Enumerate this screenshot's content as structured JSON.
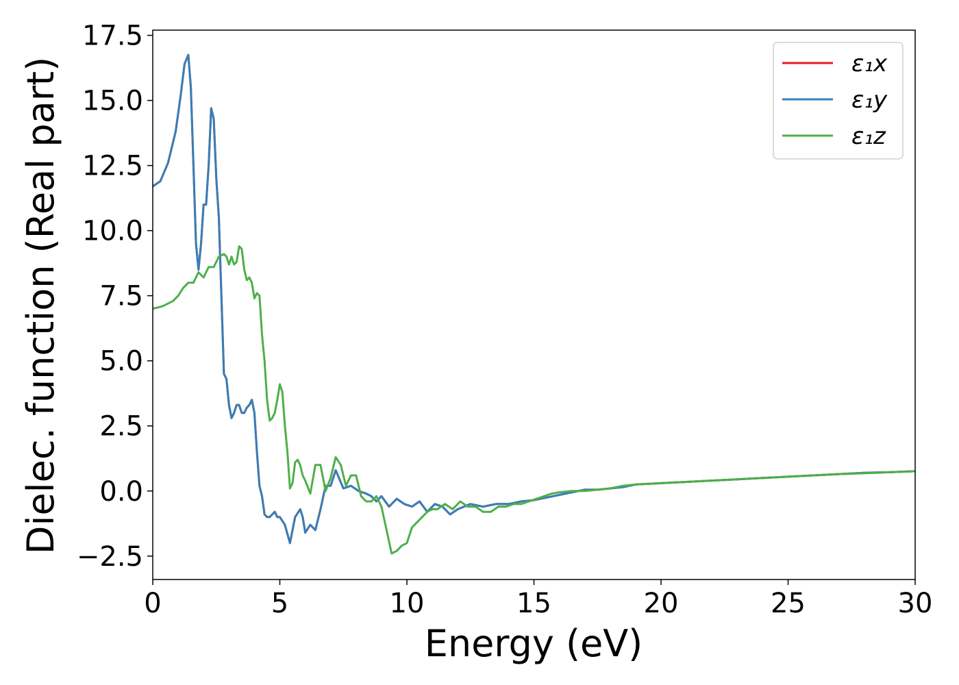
{
  "chart_data": {
    "type": "line",
    "title": "",
    "xlabel": "Energy (eV)",
    "ylabel": "Dielec. function (Real part)",
    "xlim": [
      0,
      30
    ],
    "ylim": [
      -3.4,
      17.7
    ],
    "xticks": [
      0,
      5,
      10,
      15,
      20,
      25,
      30
    ],
    "xtick_labels": [
      "0",
      "5",
      "10",
      "15",
      "20",
      "25",
      "30"
    ],
    "yticks": [
      -2.5,
      0.0,
      2.5,
      5.0,
      7.5,
      10.0,
      12.5,
      15.0,
      17.5
    ],
    "ytick_labels": [
      "−2.5",
      "0.0",
      "2.5",
      "5.0",
      "7.5",
      "10.0",
      "12.5",
      "15.0",
      "17.5"
    ],
    "grid": false,
    "legend_position": "top-right",
    "series": [
      {
        "name": "ε₁x",
        "color": "#e41a1c",
        "x": [
          0,
          0.3,
          0.6,
          0.9,
          1.1,
          1.25,
          1.4,
          1.5,
          1.6,
          1.7,
          1.8,
          1.9,
          2.0,
          2.1,
          2.2,
          2.3,
          2.4,
          2.5,
          2.6,
          2.7,
          2.8,
          2.9,
          3.0,
          3.1,
          3.2,
          3.3,
          3.4,
          3.5,
          3.6,
          3.7,
          3.8,
          3.9,
          4.0,
          4.1,
          4.2,
          4.3,
          4.4,
          4.5,
          4.6,
          4.7,
          4.8,
          4.9,
          5.0,
          5.2,
          5.4,
          5.6,
          5.8,
          5.9,
          6.0,
          6.2,
          6.4,
          6.6,
          6.8,
          7.0,
          7.2,
          7.5,
          7.8,
          8.1,
          8.4,
          8.6,
          8.8,
          9.0,
          9.3,
          9.6,
          9.9,
          10.2,
          10.5,
          10.8,
          11.1,
          11.4,
          11.7,
          12.0,
          12.5,
          13.0,
          13.5,
          14.0,
          14.5,
          15.0,
          15.5,
          16.0,
          16.5,
          17.0,
          17.5,
          18.0,
          18.5,
          19.0,
          20.0,
          21.0,
          22.0,
          23.0,
          24.0,
          25.0,
          26.0,
          27.0,
          28.0,
          29.0,
          30.0
        ],
        "y": [
          11.7,
          11.9,
          12.6,
          13.8,
          15.2,
          16.4,
          16.75,
          15.5,
          12.5,
          9.5,
          8.5,
          9.5,
          11.0,
          11.0,
          12.5,
          14.7,
          14.3,
          12.0,
          10.5,
          7.5,
          4.5,
          4.3,
          3.3,
          2.8,
          3.0,
          3.3,
          3.3,
          3.0,
          3.0,
          3.2,
          3.3,
          3.5,
          3.0,
          1.5,
          0.2,
          -0.2,
          -0.9,
          -1.0,
          -1.0,
          -0.9,
          -0.8,
          -1.0,
          -1.0,
          -1.3,
          -2.0,
          -1.0,
          -0.7,
          -1.0,
          -1.6,
          -1.3,
          -1.5,
          -0.7,
          0.2,
          0.2,
          0.8,
          0.1,
          0.2,
          0.0,
          -0.1,
          -0.2,
          -0.4,
          -0.2,
          -0.6,
          -0.3,
          -0.5,
          -0.6,
          -0.4,
          -0.8,
          -0.5,
          -0.6,
          -0.9,
          -0.7,
          -0.5,
          -0.6,
          -0.5,
          -0.5,
          -0.4,
          -0.35,
          -0.25,
          -0.15,
          -0.05,
          0.05,
          0.05,
          0.1,
          0.15,
          0.25,
          0.3,
          0.35,
          0.4,
          0.45,
          0.5,
          0.55,
          0.6,
          0.65,
          0.7,
          0.72,
          0.76
        ]
      },
      {
        "name": "ε₁y",
        "color": "#377eb8",
        "x": [
          0,
          0.3,
          0.6,
          0.9,
          1.1,
          1.25,
          1.4,
          1.5,
          1.6,
          1.7,
          1.8,
          1.9,
          2.0,
          2.1,
          2.2,
          2.3,
          2.4,
          2.5,
          2.6,
          2.7,
          2.8,
          2.9,
          3.0,
          3.1,
          3.2,
          3.3,
          3.4,
          3.5,
          3.6,
          3.7,
          3.8,
          3.9,
          4.0,
          4.1,
          4.2,
          4.3,
          4.4,
          4.5,
          4.6,
          4.7,
          4.8,
          4.9,
          5.0,
          5.2,
          5.4,
          5.6,
          5.8,
          5.9,
          6.0,
          6.2,
          6.4,
          6.6,
          6.8,
          7.0,
          7.2,
          7.5,
          7.8,
          8.1,
          8.4,
          8.6,
          8.8,
          9.0,
          9.3,
          9.6,
          9.9,
          10.2,
          10.5,
          10.8,
          11.1,
          11.4,
          11.7,
          12.0,
          12.5,
          13.0,
          13.5,
          14.0,
          14.5,
          15.0,
          15.5,
          16.0,
          16.5,
          17.0,
          17.5,
          18.0,
          18.5,
          19.0,
          20.0,
          21.0,
          22.0,
          23.0,
          24.0,
          25.0,
          26.0,
          27.0,
          28.0,
          29.0,
          30.0
        ],
        "y": [
          11.7,
          11.9,
          12.6,
          13.8,
          15.2,
          16.4,
          16.75,
          15.5,
          12.5,
          9.5,
          8.5,
          9.5,
          11.0,
          11.0,
          12.5,
          14.7,
          14.3,
          12.0,
          10.5,
          7.5,
          4.5,
          4.3,
          3.3,
          2.8,
          3.0,
          3.3,
          3.3,
          3.0,
          3.0,
          3.2,
          3.3,
          3.5,
          3.0,
          1.5,
          0.2,
          -0.2,
          -0.9,
          -1.0,
          -1.0,
          -0.9,
          -0.8,
          -1.0,
          -1.0,
          -1.3,
          -2.0,
          -1.0,
          -0.7,
          -1.0,
          -1.6,
          -1.3,
          -1.5,
          -0.7,
          0.2,
          0.2,
          0.8,
          0.1,
          0.2,
          0.0,
          -0.1,
          -0.2,
          -0.4,
          -0.2,
          -0.6,
          -0.3,
          -0.5,
          -0.6,
          -0.4,
          -0.8,
          -0.5,
          -0.6,
          -0.9,
          -0.7,
          -0.5,
          -0.6,
          -0.5,
          -0.5,
          -0.4,
          -0.35,
          -0.25,
          -0.15,
          -0.05,
          0.05,
          0.05,
          0.1,
          0.15,
          0.25,
          0.3,
          0.35,
          0.4,
          0.45,
          0.5,
          0.55,
          0.6,
          0.65,
          0.7,
          0.72,
          0.76
        ]
      },
      {
        "name": "ε₁z",
        "color": "#4daf4a",
        "x": [
          0,
          0.4,
          0.8,
          1.0,
          1.2,
          1.4,
          1.6,
          1.8,
          2.0,
          2.2,
          2.4,
          2.6,
          2.8,
          2.9,
          3.0,
          3.1,
          3.2,
          3.3,
          3.4,
          3.5,
          3.6,
          3.7,
          3.8,
          3.9,
          4.0,
          4.1,
          4.2,
          4.3,
          4.4,
          4.5,
          4.6,
          4.7,
          4.8,
          4.9,
          5.0,
          5.1,
          5.2,
          5.3,
          5.4,
          5.5,
          5.6,
          5.7,
          5.8,
          5.9,
          6.0,
          6.2,
          6.4,
          6.6,
          6.8,
          7.0,
          7.2,
          7.4,
          7.6,
          7.8,
          8.0,
          8.2,
          8.4,
          8.6,
          8.8,
          9.0,
          9.2,
          9.4,
          9.6,
          9.8,
          10.0,
          10.2,
          10.4,
          10.6,
          10.8,
          11.0,
          11.2,
          11.5,
          11.8,
          12.1,
          12.4,
          12.7,
          13.0,
          13.3,
          13.6,
          13.9,
          14.2,
          14.5,
          14.8,
          15.1,
          15.4,
          15.7,
          16.0,
          16.5,
          17.0,
          17.5,
          18.0,
          18.5,
          19.0,
          20.0,
          21.0,
          22.0,
          23.0,
          24.0,
          25.0,
          26.0,
          27.0,
          28.0,
          29.0,
          30.0
        ],
        "y": [
          7.0,
          7.1,
          7.3,
          7.5,
          7.8,
          8.0,
          8.0,
          8.4,
          8.2,
          8.6,
          8.6,
          9.0,
          9.1,
          9.0,
          8.7,
          9.0,
          8.7,
          8.8,
          9.4,
          9.3,
          8.5,
          8.1,
          8.2,
          8.0,
          7.4,
          7.6,
          7.5,
          6.0,
          5.0,
          3.5,
          2.7,
          2.8,
          3.0,
          3.5,
          4.1,
          3.8,
          2.5,
          1.5,
          0.1,
          0.3,
          1.1,
          1.2,
          1.0,
          0.6,
          0.4,
          -0.1,
          1.0,
          1.0,
          0.0,
          0.5,
          1.3,
          1.0,
          0.2,
          0.6,
          0.6,
          -0.2,
          -0.4,
          -0.4,
          -0.2,
          -0.6,
          -1.5,
          -2.4,
          -2.3,
          -2.1,
          -2.0,
          -1.4,
          -1.2,
          -1.0,
          -0.8,
          -0.7,
          -0.7,
          -0.5,
          -0.7,
          -0.4,
          -0.6,
          -0.6,
          -0.8,
          -0.8,
          -0.6,
          -0.6,
          -0.5,
          -0.5,
          -0.4,
          -0.3,
          -0.2,
          -0.1,
          -0.05,
          0.0,
          0.0,
          0.05,
          0.1,
          0.2,
          0.25,
          0.3,
          0.35,
          0.4,
          0.45,
          0.5,
          0.55,
          0.6,
          0.65,
          0.68,
          0.72,
          0.76
        ]
      }
    ]
  }
}
